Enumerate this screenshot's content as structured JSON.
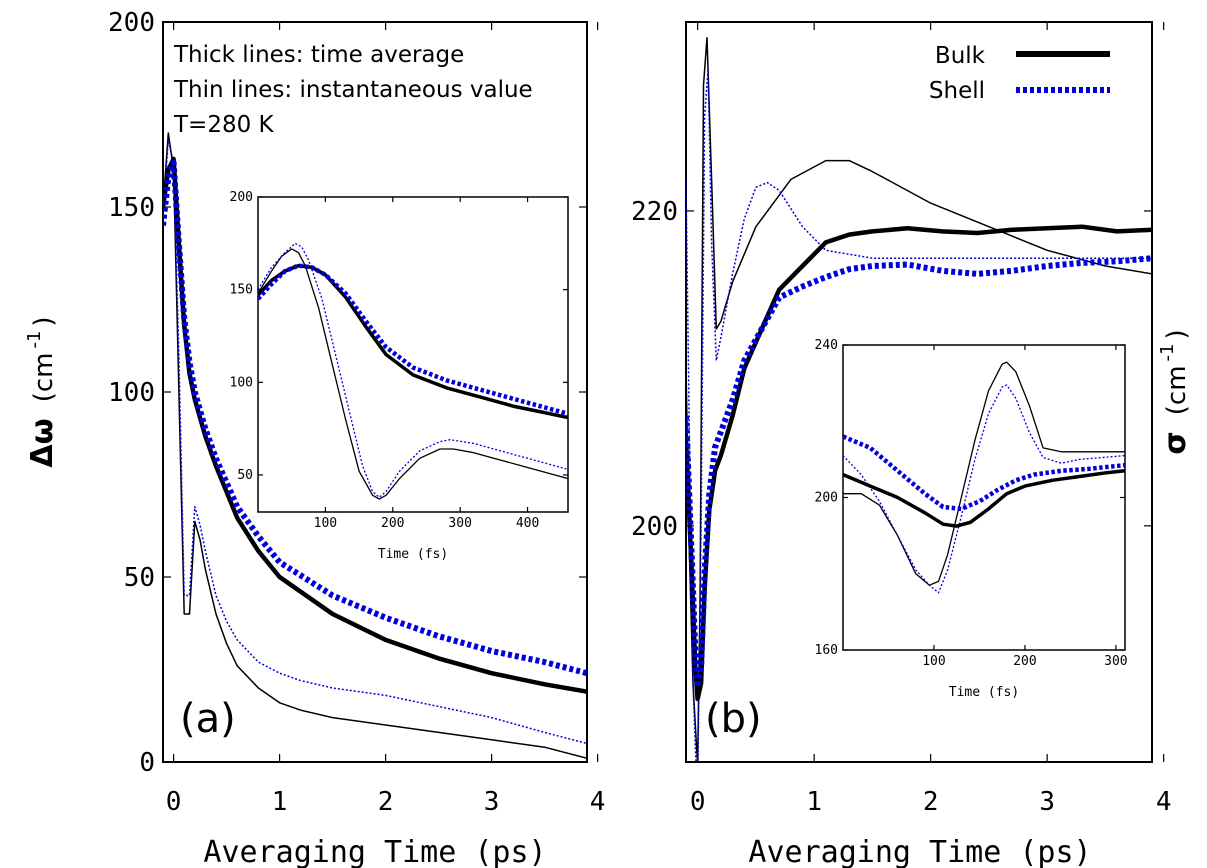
{
  "chart_data": [
    {
      "id": "a",
      "type": "line",
      "panel_label": "(a)",
      "xlabel": "Averaging Time (ps)",
      "ylabel_symbol": "Δω",
      "ylabel_unit": "(cm",
      "ylabel_exp": "-1",
      "ylabel_close": ")",
      "xlim": [
        -0.1,
        3.9
      ],
      "ylim": [
        0,
        200
      ],
      "xticks": [
        0,
        1,
        2,
        3,
        4
      ],
      "yticks": [
        0,
        50,
        100,
        150,
        200
      ],
      "annotations": [
        "Thick lines: time average",
        "Thin lines: instantaneous value",
        "T=280 K"
      ],
      "series": [
        {
          "key": "bulk_avg",
          "color": "#000000",
          "style": "thick-solid",
          "x": [
            -0.1,
            -0.05,
            0.0,
            0.05,
            0.1,
            0.15,
            0.2,
            0.3,
            0.4,
            0.6,
            0.8,
            1.0,
            1.5,
            2.0,
            2.5,
            3.0,
            3.5,
            3.9
          ],
          "y": [
            150,
            160,
            163,
            140,
            118,
            105,
            98,
            88,
            80,
            66,
            57,
            50,
            40,
            33,
            28,
            24,
            21,
            19
          ]
        },
        {
          "key": "shell_avg",
          "color": "#0000dd",
          "style": "thick-dotted",
          "x": [
            -0.1,
            -0.05,
            0.0,
            0.05,
            0.1,
            0.15,
            0.2,
            0.3,
            0.4,
            0.6,
            0.8,
            1.0,
            1.5,
            2.0,
            2.5,
            3.0,
            3.5,
            3.9
          ],
          "y": [
            145,
            158,
            162,
            140,
            120,
            108,
            100,
            90,
            82,
            69,
            61,
            54,
            45,
            39,
            34,
            30,
            27,
            24
          ]
        },
        {
          "key": "bulk_inst",
          "color": "#000000",
          "style": "thin-solid",
          "x": [
            -0.1,
            -0.05,
            0.0,
            0.05,
            0.1,
            0.15,
            0.2,
            0.25,
            0.3,
            0.4,
            0.5,
            0.6,
            0.8,
            1.0,
            1.2,
            1.5,
            2.0,
            2.5,
            3.0,
            3.5,
            3.9
          ],
          "y": [
            150,
            170,
            160,
            100,
            40,
            40,
            65,
            60,
            52,
            40,
            32,
            26,
            20,
            16,
            14,
            12,
            10,
            8,
            6,
            4,
            1
          ]
        },
        {
          "key": "shell_inst",
          "color": "#0000dd",
          "style": "thin-dotted",
          "x": [
            -0.1,
            -0.05,
            0.0,
            0.05,
            0.1,
            0.15,
            0.2,
            0.25,
            0.3,
            0.4,
            0.5,
            0.6,
            0.8,
            1.0,
            1.2,
            1.5,
            2.0,
            2.5,
            3.0,
            3.5,
            3.9
          ],
          "y": [
            148,
            168,
            162,
            110,
            45,
            45,
            69,
            64,
            57,
            45,
            38,
            33,
            27,
            24,
            22,
            20,
            18,
            15,
            12,
            8,
            5
          ]
        }
      ],
      "inset": {
        "xlabel": "Time (fs)",
        "xlim": [
          0,
          460
        ],
        "ylim": [
          30,
          200
        ],
        "xticks": [
          100,
          200,
          300,
          400
        ],
        "yticks": [
          50,
          100,
          150,
          200
        ],
        "series": [
          {
            "key": "bulk_avg",
            "color": "#000000",
            "style": "thick-solid",
            "x": [
              0,
              20,
              40,
              60,
              80,
              100,
              130,
              160,
              190,
              230,
              280,
              330,
              380,
              420,
              460
            ],
            "y": [
              147,
              155,
              160,
              163,
              162,
              158,
              146,
              130,
              115,
              104,
              97,
              92,
              87,
              84,
              81
            ]
          },
          {
            "key": "shell_avg",
            "color": "#0000dd",
            "style": "thick-dotted",
            "x": [
              0,
              20,
              40,
              60,
              80,
              100,
              130,
              160,
              190,
              230,
              280,
              330,
              380,
              420,
              460
            ],
            "y": [
              145,
              153,
              160,
              163,
              162,
              158,
              148,
              133,
              119,
              108,
              101,
              96,
              91,
              87,
              83
            ]
          },
          {
            "key": "bulk_inst",
            "color": "#000000",
            "style": "thin-solid",
            "x": [
              0,
              20,
              35,
              50,
              60,
              70,
              90,
              110,
              130,
              150,
              170,
              180,
              190,
              210,
              240,
              270,
              290,
              320,
              360,
              400,
              440,
              460
            ],
            "y": [
              148,
              160,
              168,
              172,
              170,
              163,
              140,
              110,
              80,
              52,
              39,
              37,
              39,
              48,
              59,
              64,
              64,
              62,
              58,
              54,
              50,
              48
            ]
          },
          {
            "key": "shell_inst",
            "color": "#0000dd",
            "style": "thin-dotted",
            "x": [
              0,
              20,
              40,
              55,
              65,
              75,
              95,
              115,
              135,
              155,
              170,
              180,
              190,
              210,
              240,
              270,
              285,
              320,
              360,
              400,
              440,
              460
            ],
            "y": [
              150,
              162,
              170,
              175,
              173,
              166,
              145,
              115,
              85,
              55,
              41,
              38,
              41,
              52,
              63,
              68,
              69,
              67,
              63,
              59,
              55,
              53
            ]
          }
        ]
      }
    },
    {
      "id": "b",
      "type": "line",
      "panel_label": "(b)",
      "xlabel": "Averaging Time (ps)",
      "ylabel_symbol": "σ",
      "ylabel_unit": "(cm",
      "ylabel_exp": "-1",
      "ylabel_close": ")",
      "xlim": [
        -0.1,
        3.9
      ],
      "ylim": [
        185,
        232
      ],
      "xticks": [
        0,
        1,
        2,
        3,
        4
      ],
      "yticks": [
        200,
        220
      ],
      "legend": {
        "placement": "top-right",
        "entries": [
          {
            "name": "Bulk",
            "key": "bulk_avg"
          },
          {
            "name": "Shell",
            "key": "shell_avg"
          }
        ]
      },
      "series": [
        {
          "key": "bulk_avg",
          "color": "#000000",
          "style": "thick-solid",
          "x": [
            -0.1,
            -0.05,
            -0.02,
            0.0,
            0.03,
            0.06,
            0.1,
            0.15,
            0.2,
            0.3,
            0.4,
            0.55,
            0.7,
            0.9,
            1.1,
            1.3,
            1.5,
            1.8,
            2.1,
            2.4,
            2.7,
            3.0,
            3.3,
            3.6,
            3.9
          ],
          "y": [
            205.5,
            197,
            191,
            189,
            190,
            196,
            201,
            203.5,
            204.5,
            207,
            210,
            212.5,
            215,
            216.5,
            218,
            218.5,
            218.7,
            218.9,
            218.7,
            218.6,
            218.8,
            218.9,
            219.0,
            218.7,
            218.8
          ]
        },
        {
          "key": "shell_avg",
          "color": "#0000dd",
          "style": "thick-dotted",
          "x": [
            -0.1,
            -0.05,
            -0.02,
            0.0,
            0.03,
            0.06,
            0.1,
            0.15,
            0.2,
            0.3,
            0.4,
            0.55,
            0.7,
            0.9,
            1.1,
            1.3,
            1.5,
            1.8,
            2.1,
            2.4,
            2.7,
            3.0,
            3.3,
            3.6,
            3.9
          ],
          "y": [
            207,
            198,
            192,
            190,
            191,
            197,
            202,
            205,
            206,
            208,
            210.5,
            212.5,
            214.5,
            215.2,
            215.8,
            216.3,
            216.5,
            216.6,
            216.2,
            216.0,
            216.2,
            216.5,
            216.7,
            216.8,
            217.0
          ]
        },
        {
          "key": "bulk_inst",
          "color": "#000000",
          "style": "thin-solid",
          "x": [
            -0.1,
            -0.07,
            -0.04,
            -0.01,
            0.0,
            0.02,
            0.05,
            0.08,
            0.12,
            0.16,
            0.2,
            0.3,
            0.5,
            0.8,
            1.1,
            1.3,
            1.5,
            2.0,
            2.5,
            3.0,
            3.5,
            3.9
          ],
          "y": [
            210,
            198,
            190,
            186,
            185,
            195,
            228,
            231,
            222,
            212.5,
            213,
            215.5,
            219,
            222,
            223.2,
            223.2,
            222.5,
            220.5,
            219,
            217.5,
            216.5,
            216
          ]
        },
        {
          "key": "shell_inst",
          "color": "#0000dd",
          "style": "thin-dotted",
          "x": [
            -0.1,
            -0.07,
            -0.04,
            -0.01,
            0.0,
            0.03,
            0.06,
            0.09,
            0.12,
            0.16,
            0.2,
            0.3,
            0.4,
            0.5,
            0.6,
            0.7,
            0.9,
            1.1,
            1.5,
            2.0,
            2.5,
            3.0,
            3.5,
            3.9
          ],
          "y": [
            222,
            205,
            190,
            184,
            183,
            200,
            226,
            229,
            218,
            210.5,
            212,
            216,
            219.5,
            221.5,
            221.8,
            221.3,
            219,
            217.5,
            217,
            217,
            217,
            217,
            217,
            217
          ]
        }
      ],
      "inset": {
        "xlabel": "Time (fs)",
        "xlim": [
          0,
          310
        ],
        "ylim": [
          160,
          240
        ],
        "xticks": [
          100,
          200,
          300
        ],
        "yticks": [
          160,
          200,
          240
        ],
        "series": [
          {
            "key": "bulk_avg",
            "color": "#000000",
            "style": "thick-solid",
            "x": [
              0,
              30,
              60,
              90,
              110,
              125,
              140,
              160,
              180,
              200,
              230,
              260,
              290,
              310
            ],
            "y": [
              206,
              203,
              200,
              196,
              193,
              192.5,
              193.5,
              197,
              201,
              203,
              204.5,
              205.5,
              206.5,
              207
            ]
          },
          {
            "key": "shell_avg",
            "color": "#0000dd",
            "style": "thick-dotted",
            "x": [
              0,
              30,
              60,
              90,
              110,
              130,
              150,
              170,
              190,
              210,
              240,
              270,
              290,
              310
            ],
            "y": [
              216,
              213,
              207,
              201,
              197.5,
              197,
              199,
              202,
              204.5,
              206,
              207,
              207.5,
              208,
              208.5
            ]
          },
          {
            "key": "bulk_inst",
            "color": "#000000",
            "style": "thin-solid",
            "x": [
              0,
              20,
              40,
              60,
              80,
              95,
              105,
              115,
              130,
              145,
              160,
              175,
              180,
              190,
              205,
              220,
              240,
              260,
              285,
              310
            ],
            "y": [
              201,
              201,
              198,
              190,
              180,
              177,
              178,
              185,
              200,
              215,
              228,
              235,
              235.5,
              233,
              224,
              213,
              212,
              212,
              212,
              212
            ]
          },
          {
            "key": "shell_inst",
            "color": "#0000dd",
            "style": "thin-dotted",
            "x": [
              0,
              20,
              40,
              60,
              80,
              95,
              105,
              115,
              130,
              145,
              160,
              175,
              180,
              190,
              205,
              220,
              240,
              260,
              285,
              310
            ],
            "y": [
              211,
              206,
              199,
              190,
              181,
              177,
              175,
              181,
              195,
              210,
              222,
              229,
              229.5,
              226,
              217,
              210.5,
              209,
              210,
              210.5,
              211
            ]
          }
        ]
      }
    }
  ]
}
